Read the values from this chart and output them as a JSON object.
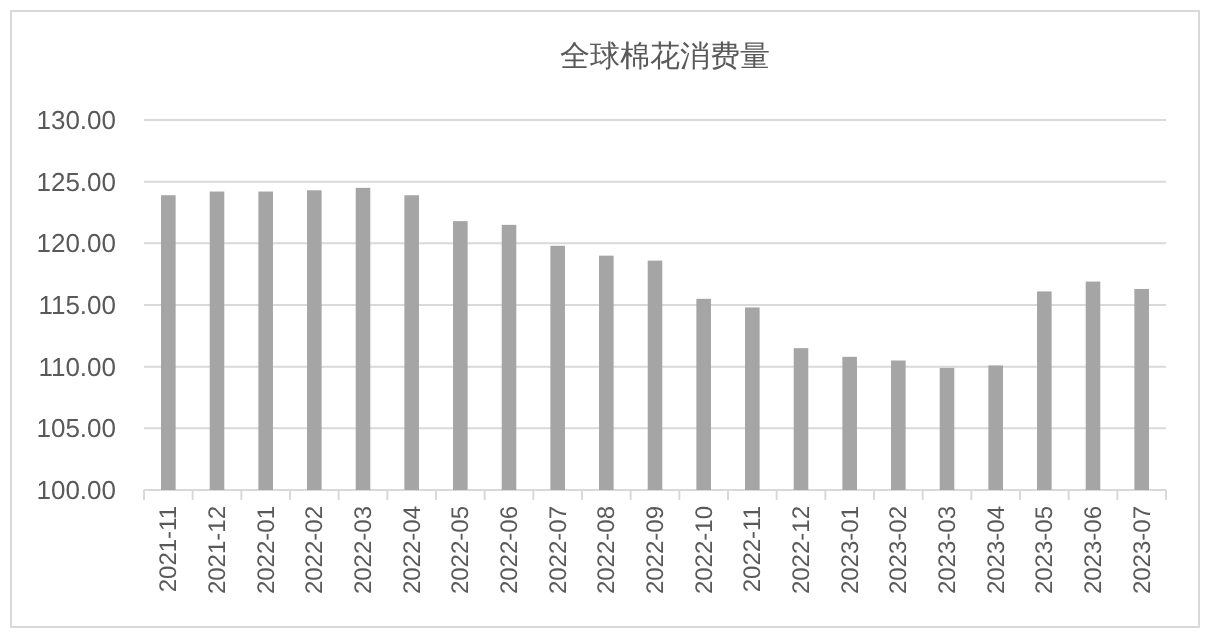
{
  "chart_data": {
    "type": "bar",
    "title": "全球棉花消费量",
    "categories": [
      "2021-11",
      "2021-12",
      "2022-01",
      "2022-02",
      "2022-03",
      "2022-04",
      "2022-05",
      "2022-06",
      "2022-07",
      "2022-08",
      "2022-09",
      "2022-10",
      "2022-11",
      "2022-12",
      "2023-01",
      "2023-02",
      "2023-03",
      "2023-04",
      "2023-05",
      "2023-06",
      "2023-07"
    ],
    "values": [
      123.9,
      124.2,
      124.2,
      124.3,
      124.5,
      123.9,
      121.8,
      121.5,
      119.8,
      119.0,
      118.6,
      115.5,
      114.8,
      111.5,
      110.8,
      110.5,
      109.9,
      110.1,
      116.1,
      116.9,
      116.3
    ],
    "color": "#a5a5a5",
    "ylim": [
      100,
      130
    ],
    "yticks": [
      {
        "value": 100,
        "label": "100.00"
      },
      {
        "value": 105,
        "label": "105.00"
      },
      {
        "value": 110,
        "label": "110.00"
      },
      {
        "value": 115,
        "label": "115.00"
      },
      {
        "value": 120,
        "label": "120.00"
      },
      {
        "value": 125,
        "label": "125.00"
      },
      {
        "value": 130,
        "label": "130.00"
      }
    ],
    "grid": "y"
  }
}
